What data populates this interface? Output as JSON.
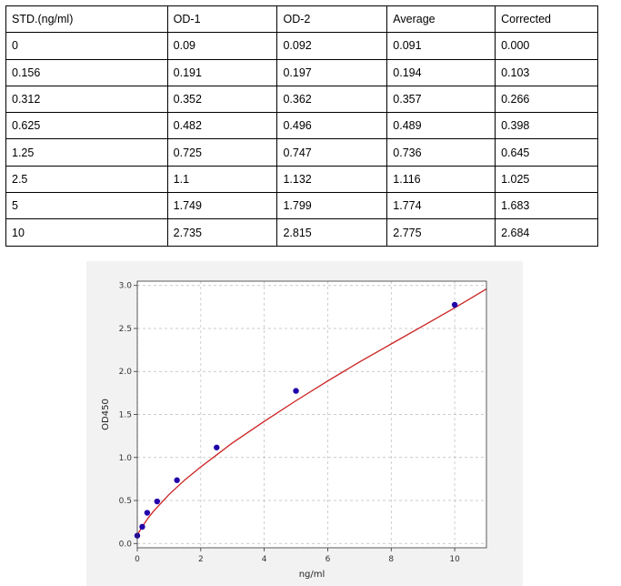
{
  "table": {
    "headers": [
      "STD.(ng/ml)",
      "OD-1",
      "OD-2",
      "Average",
      "Corrected"
    ],
    "rows": [
      [
        "0",
        "0.09",
        "0.092",
        "0.091",
        "0.000"
      ],
      [
        "0.156",
        "0.191",
        "0.197",
        "0.194",
        "0.103"
      ],
      [
        "0.312",
        "0.352",
        "0.362",
        "0.357",
        "0.266"
      ],
      [
        "0.625",
        "0.482",
        "0.496",
        "0.489",
        "0.398"
      ],
      [
        "1.25",
        "0.725",
        "0.747",
        "0.736",
        "0.645"
      ],
      [
        "2.5",
        "1.1",
        "1.132",
        "1.116",
        "1.025"
      ],
      [
        "5",
        "1.749",
        "1.799",
        "1.774",
        "1.683"
      ],
      [
        "10",
        "2.735",
        "2.815",
        "2.775",
        "2.684"
      ]
    ]
  },
  "chart_data": {
    "type": "scatter",
    "title": "",
    "xlabel": "ng/ml",
    "ylabel": "OD450",
    "xlim": [
      0,
      11
    ],
    "ylim": [
      -0.05,
      3.05
    ],
    "xticks": [
      0,
      2,
      4,
      6,
      8,
      10
    ],
    "yticks": [
      0.0,
      0.5,
      1.0,
      1.5,
      2.0,
      2.5,
      3.0
    ],
    "xtick_labels": [
      "0",
      "2",
      "4",
      "6",
      "8",
      "10"
    ],
    "ytick_labels": [
      "0.0",
      "0.5",
      "1.0",
      "1.5",
      "2.0",
      "2.5",
      "3.0"
    ],
    "grid": true,
    "series": [
      {
        "x": [
          0,
          0.156,
          0.312,
          0.625,
          1.25,
          2.5,
          5,
          10
        ],
        "y": [
          0.091,
          0.194,
          0.357,
          0.489,
          0.736,
          1.116,
          1.774,
          2.775
        ],
        "color": "#2200aa"
      }
    ],
    "fit_curve": {
      "x": [
        0,
        0.1,
        0.2,
        0.35,
        0.5,
        0.75,
        1,
        1.5,
        2,
        2.5,
        3,
        4,
        5,
        6,
        7,
        8,
        9,
        10,
        11
      ],
      "y": [
        0.1,
        0.16,
        0.22,
        0.3,
        0.37,
        0.47,
        0.57,
        0.74,
        0.89,
        1.03,
        1.17,
        1.42,
        1.66,
        1.89,
        2.11,
        2.32,
        2.53,
        2.74,
        2.96
      ],
      "color": "#cc2222"
    }
  }
}
